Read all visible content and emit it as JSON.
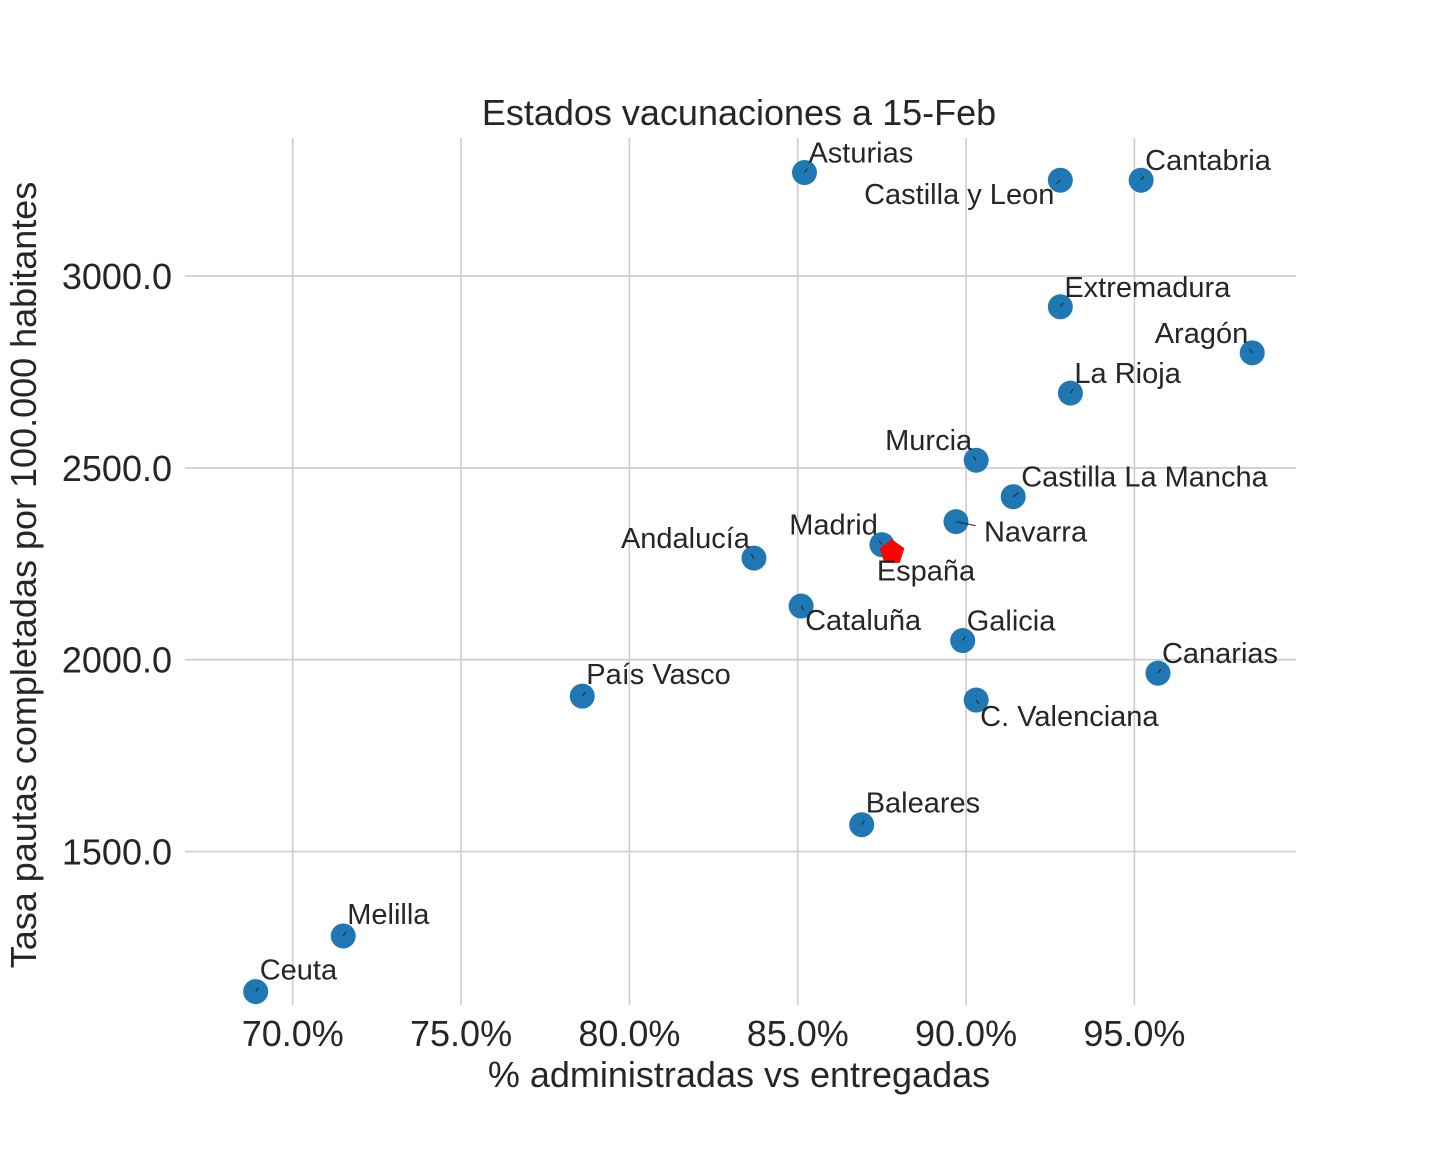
{
  "chart_data": {
    "type": "scatter",
    "title": "Estados vacunaciones a 15-Feb",
    "xlabel": "% administradas vs entregadas",
    "ylabel": "Tasa pautas completadas por 100.000 habitantes",
    "xlim": [
      0.668,
      0.998
    ],
    "ylim": [
      1100,
      3360
    ],
    "x_ticks": [
      0.7,
      0.75,
      0.8,
      0.85,
      0.9,
      0.95
    ],
    "x_tick_labels": [
      "70.0%",
      "75.0%",
      "80.0%",
      "85.0%",
      "90.0%",
      "95.0%"
    ],
    "y_ticks": [
      1500,
      2000,
      2500,
      3000
    ],
    "y_tick_labels": [
      "1500.0",
      "2000.0",
      "2500.0",
      "3000.0"
    ],
    "grid": true,
    "colors": {
      "regions": "#1f77b4",
      "national": "#ff0000",
      "text": "#262626",
      "grid": "#cccccc"
    },
    "points": [
      {
        "name": "Asturias",
        "x": 0.852,
        "y": 3270,
        "label_anchor": "start",
        "label_dx": 4,
        "label_dy": -10
      },
      {
        "name": "Castilla y Leon",
        "x": 0.928,
        "y": 3250,
        "label_anchor": "end",
        "label_dx": -6,
        "label_dy": 24
      },
      {
        "name": "Cantabria",
        "x": 0.952,
        "y": 3250,
        "label_anchor": "start",
        "label_dx": 4,
        "label_dy": -10
      },
      {
        "name": "Extremadura",
        "x": 0.928,
        "y": 2920,
        "label_anchor": "start",
        "label_dx": 4,
        "label_dy": -10
      },
      {
        "name": "Aragón",
        "x": 0.985,
        "y": 2800,
        "label_anchor": "end",
        "label_dx": -4,
        "label_dy": -10
      },
      {
        "name": "La Rioja",
        "x": 0.931,
        "y": 2695,
        "label_anchor": "start",
        "label_dx": 4,
        "label_dy": -10
      },
      {
        "name": "Murcia",
        "x": 0.903,
        "y": 2520,
        "label_anchor": "end",
        "label_dx": -4,
        "label_dy": -10
      },
      {
        "name": "Castilla La Mancha",
        "x": 0.914,
        "y": 2425,
        "label_anchor": "start",
        "label_dx": 8,
        "label_dy": -10
      },
      {
        "name": "Navarra",
        "x": 0.897,
        "y": 2360,
        "label_anchor": "start",
        "label_dx": 28,
        "label_dy": 20
      },
      {
        "name": "Madrid",
        "x": 0.875,
        "y": 2300,
        "label_anchor": "end",
        "label_dx": -4,
        "label_dy": -10
      },
      {
        "name": "Andalucía",
        "x": 0.837,
        "y": 2265,
        "label_anchor": "end",
        "label_dx": -4,
        "label_dy": -10
      },
      {
        "name": "Cataluña",
        "x": 0.851,
        "y": 2140,
        "label_anchor": "start",
        "label_dx": 4,
        "label_dy": 24
      },
      {
        "name": "Galicia",
        "x": 0.899,
        "y": 2050,
        "label_anchor": "start",
        "label_dx": 4,
        "label_dy": -10
      },
      {
        "name": "Canarias",
        "x": 0.957,
        "y": 1965,
        "label_anchor": "start",
        "label_dx": 4,
        "label_dy": -10
      },
      {
        "name": "C. Valenciana",
        "x": 0.903,
        "y": 1895,
        "label_anchor": "start",
        "label_dx": 4,
        "label_dy": 26
      },
      {
        "name": "País Vasco",
        "x": 0.786,
        "y": 1905,
        "label_anchor": "start",
        "label_dx": 4,
        "label_dy": -12
      },
      {
        "name": "Baleares",
        "x": 0.869,
        "y": 1570,
        "label_anchor": "start",
        "label_dx": 4,
        "label_dy": -12
      },
      {
        "name": "Melilla",
        "x": 0.715,
        "y": 1280,
        "label_anchor": "start",
        "label_dx": 4,
        "label_dy": -12
      },
      {
        "name": "Ceuta",
        "x": 0.689,
        "y": 1135,
        "label_anchor": "start",
        "label_dx": 4,
        "label_dy": -12
      }
    ],
    "national": {
      "name": "España",
      "x": 0.878,
      "y": 2280,
      "label_anchor": "middle",
      "label_dx": 34,
      "label_dy": 28
    }
  }
}
